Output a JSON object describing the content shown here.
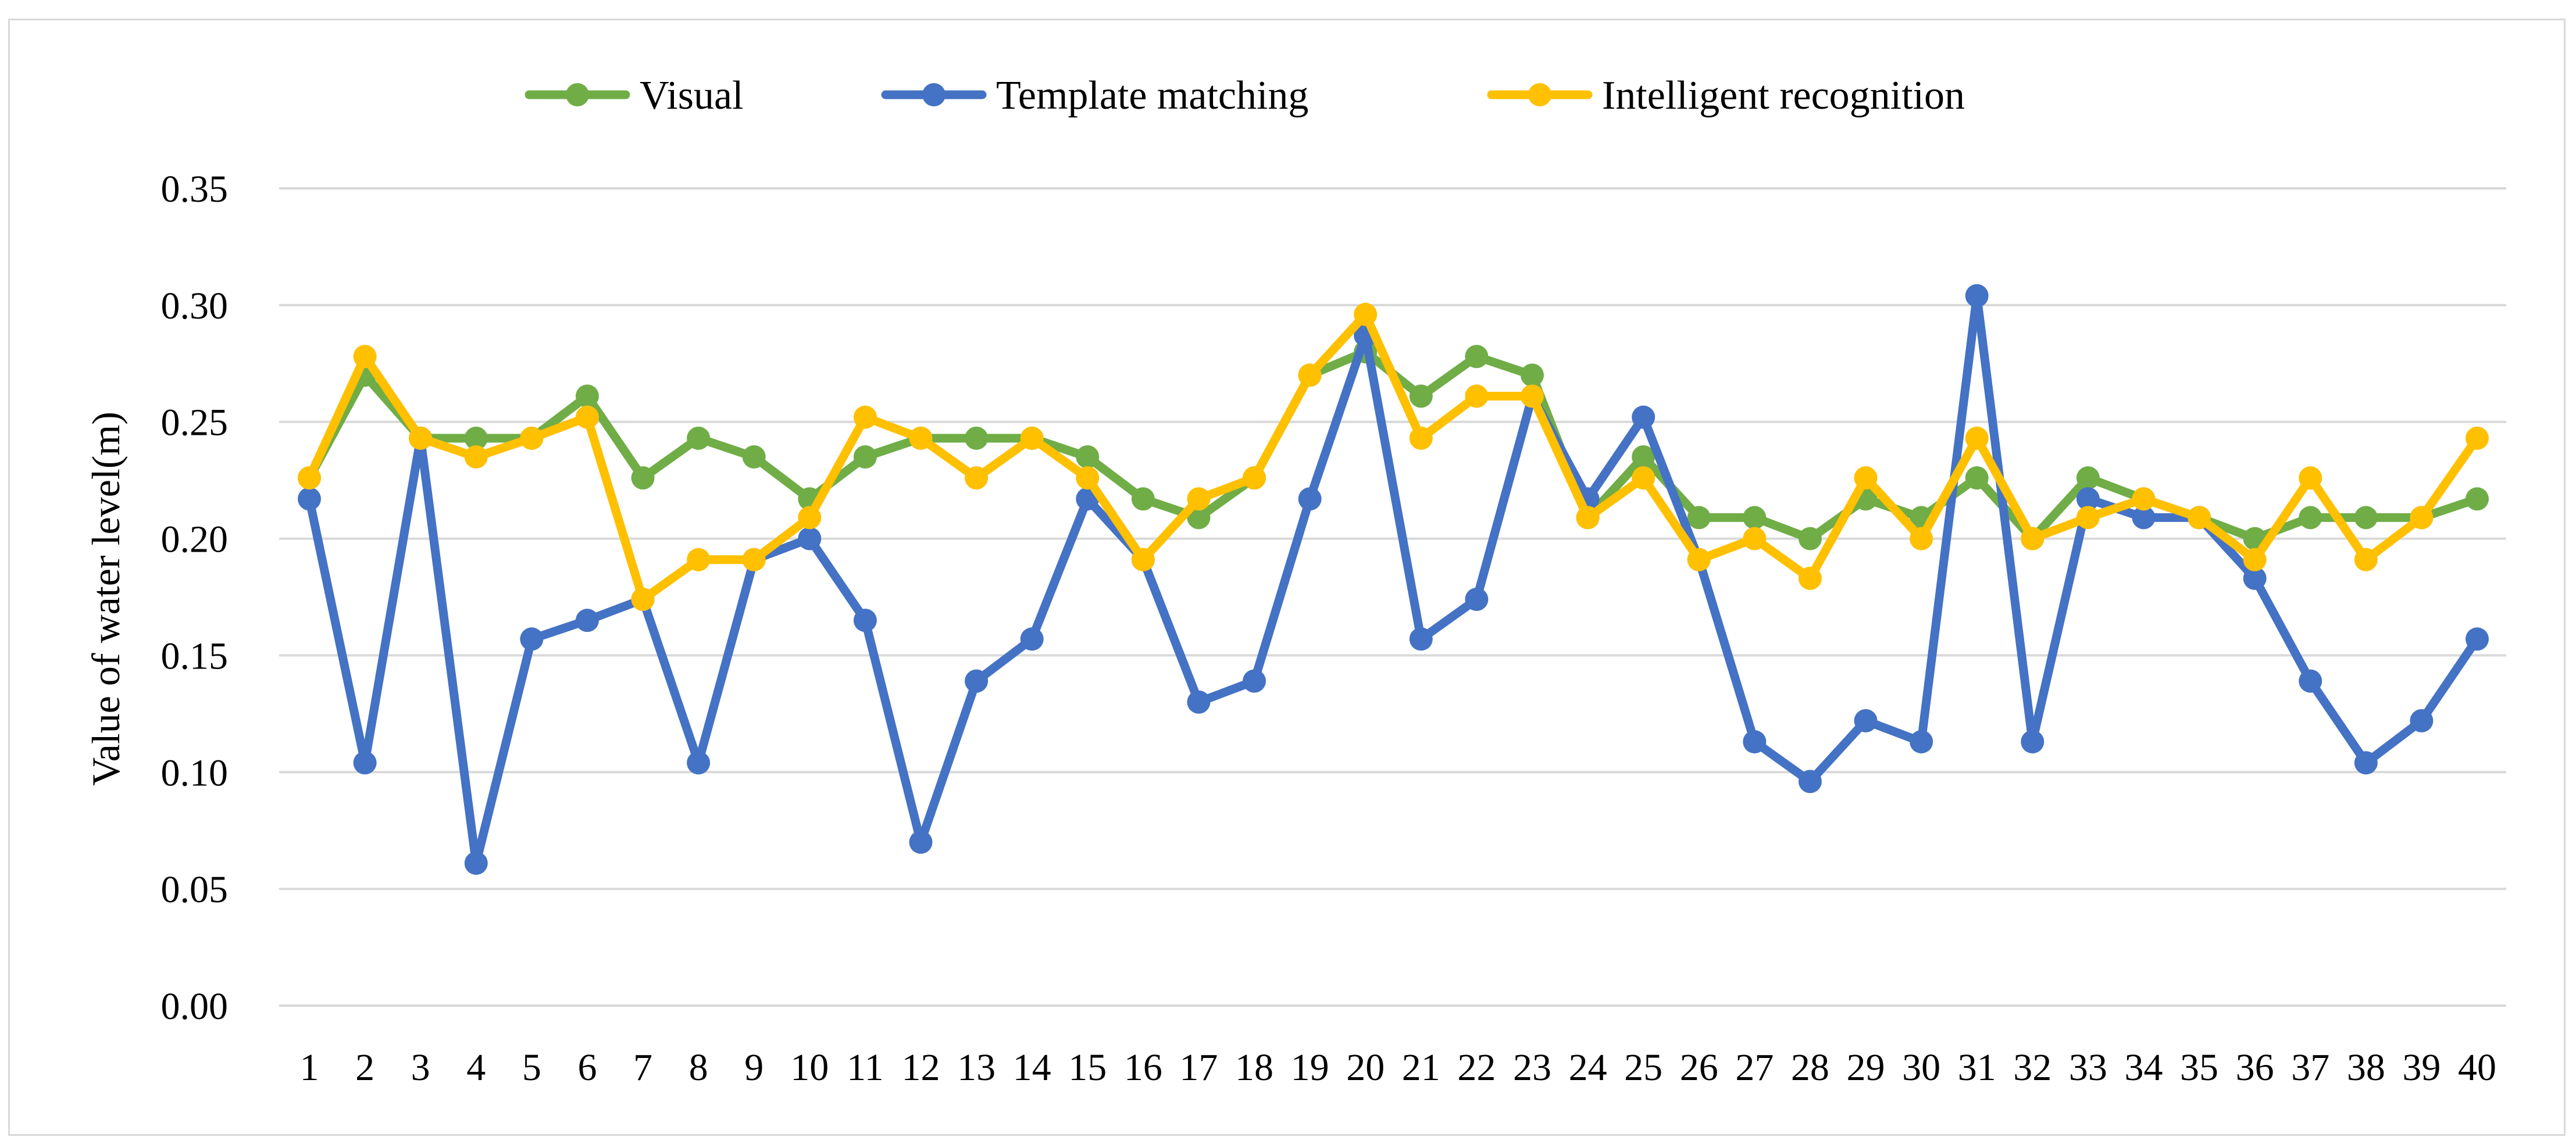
{
  "chart_data": {
    "type": "line",
    "title": "",
    "xlabel": "",
    "ylabel": "Value of water level(m)",
    "ylim": [
      0,
      0.35
    ],
    "y_ticks": [
      "0.00",
      "0.05",
      "0.10",
      "0.15",
      "0.20",
      "0.25",
      "0.30",
      "0.35"
    ],
    "grid": "horizontal",
    "legend_position": "top-center",
    "categories": [
      "1",
      "2",
      "3",
      "4",
      "5",
      "6",
      "7",
      "8",
      "9",
      "10",
      "11",
      "12",
      "13",
      "14",
      "15",
      "16",
      "17",
      "18",
      "19",
      "20",
      "21",
      "22",
      "23",
      "24",
      "25",
      "26",
      "27",
      "28",
      "29",
      "30",
      "31",
      "32",
      "33",
      "34",
      "35",
      "36",
      "37",
      "38",
      "39",
      "40"
    ],
    "series": [
      {
        "name": "Visual",
        "color": "#70ad47",
        "values": [
          0.226,
          0.27,
          0.243,
          0.243,
          0.243,
          0.261,
          0.226,
          0.243,
          0.235,
          0.217,
          0.235,
          0.243,
          0.243,
          0.243,
          0.235,
          0.217,
          0.209,
          0.226,
          0.27,
          0.28,
          0.261,
          0.278,
          0.27,
          0.209,
          0.235,
          0.209,
          0.209,
          0.2,
          0.217,
          0.209,
          0.226,
          0.2,
          0.226,
          0.217,
          0.209,
          0.2,
          0.209,
          0.209,
          0.209,
          0.217
        ]
      },
      {
        "name": "Template matching",
        "color": "#4472c4",
        "values": [
          0.217,
          0.104,
          0.243,
          0.061,
          0.157,
          0.165,
          0.174,
          0.104,
          0.191,
          0.2,
          0.165,
          0.07,
          0.139,
          0.157,
          0.217,
          0.191,
          0.13,
          0.139,
          0.217,
          0.287,
          0.157,
          0.174,
          0.261,
          0.217,
          0.252,
          0.191,
          0.113,
          0.096,
          0.122,
          0.113,
          0.304,
          0.113,
          0.217,
          0.209,
          0.209,
          0.183,
          0.139,
          0.104,
          0.122,
          0.157
        ]
      },
      {
        "name": "Intelligent recognition",
        "color": "#ffc000",
        "values": [
          0.226,
          0.278,
          0.243,
          0.235,
          0.243,
          0.252,
          0.174,
          0.191,
          0.191,
          0.209,
          0.252,
          0.243,
          0.226,
          0.243,
          0.226,
          0.191,
          0.217,
          0.226,
          0.27,
          0.296,
          0.243,
          0.261,
          0.261,
          0.209,
          0.226,
          0.191,
          0.2,
          0.183,
          0.226,
          0.2,
          0.243,
          0.2,
          0.209,
          0.217,
          0.209,
          0.191,
          0.226,
          0.191,
          0.209,
          0.243
        ]
      }
    ]
  }
}
